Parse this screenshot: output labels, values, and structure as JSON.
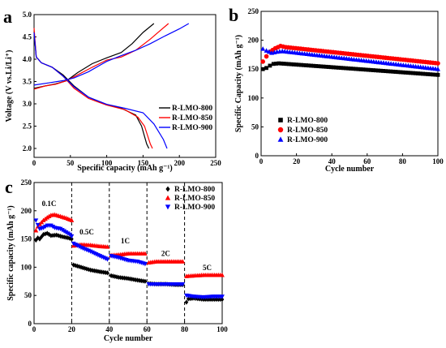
{
  "chart_data": [
    {
      "panel": "a",
      "type": "line",
      "xlabel": "Specific capacity (mAh g⁻¹)",
      "ylabel": "Voltage (V vs.Li/Li⁺)",
      "xlim": [
        0,
        250
      ],
      "ylim": [
        1.8,
        5.0
      ],
      "xticks": [
        0,
        50,
        100,
        150,
        200,
        250
      ],
      "yticks": [
        2.0,
        2.5,
        3.0,
        3.5,
        4.0,
        4.5,
        5.0
      ],
      "xtick_labels": [
        "0",
        "50",
        "100",
        "150",
        "200",
        "250"
      ],
      "ytick_labels": [
        "2.0",
        "2.5",
        "3.0",
        "3.5",
        "4.0",
        "4.5",
        "5.0"
      ],
      "legend_position": "right",
      "series": [
        {
          "name": "R-LMO-800",
          "color": "#000000",
          "charge": [
            [
              0,
              3.35
            ],
            [
              15,
              3.4
            ],
            [
              30,
              3.45
            ],
            [
              45,
              3.52
            ],
            [
              60,
              3.7
            ],
            [
              80,
              3.9
            ],
            [
              100,
              4.03
            ],
            [
              120,
              4.15
            ],
            [
              135,
              4.35
            ],
            [
              150,
              4.6
            ],
            [
              165,
              4.8
            ]
          ],
          "discharge": [
            [
              0,
              4.6
            ],
            [
              3,
              4.05
            ],
            [
              10,
              3.92
            ],
            [
              25,
              3.82
            ],
            [
              40,
              3.65
            ],
            [
              55,
              3.4
            ],
            [
              75,
              3.15
            ],
            [
              100,
              2.98
            ],
            [
              120,
              2.9
            ],
            [
              140,
              2.75
            ],
            [
              148,
              2.5
            ],
            [
              155,
              2.1
            ],
            [
              158,
              2.0
            ]
          ]
        },
        {
          "name": "R-LMO-850",
          "color": "#FF0000",
          "charge": [
            [
              0,
              3.33
            ],
            [
              15,
              3.4
            ],
            [
              30,
              3.44
            ],
            [
              45,
              3.52
            ],
            [
              60,
              3.65
            ],
            [
              80,
              3.82
            ],
            [
              100,
              3.98
            ],
            [
              120,
              4.05
            ],
            [
              140,
              4.2
            ],
            [
              160,
              4.45
            ],
            [
              172,
              4.62
            ],
            [
              185,
              4.8
            ]
          ],
          "discharge": [
            [
              0,
              4.7
            ],
            [
              3,
              4.05
            ],
            [
              10,
              3.92
            ],
            [
              25,
              3.82
            ],
            [
              40,
              3.62
            ],
            [
              55,
              3.35
            ],
            [
              75,
              3.12
            ],
            [
              100,
              2.97
            ],
            [
              125,
              2.87
            ],
            [
              143,
              2.7
            ],
            [
              152,
              2.5
            ],
            [
              160,
              2.1
            ],
            [
              163,
              2.0
            ]
          ]
        },
        {
          "name": "R-LMO-900",
          "color": "#0000FF",
          "charge": [
            [
              0,
              3.42
            ],
            [
              20,
              3.47
            ],
            [
              40,
              3.52
            ],
            [
              55,
              3.58
            ],
            [
              75,
              3.72
            ],
            [
              100,
              3.95
            ],
            [
              120,
              4.08
            ],
            [
              140,
              4.2
            ],
            [
              160,
              4.35
            ],
            [
              180,
              4.52
            ],
            [
              200,
              4.68
            ],
            [
              213,
              4.8
            ]
          ],
          "discharge": [
            [
              0,
              4.6
            ],
            [
              3,
              4.05
            ],
            [
              10,
              3.92
            ],
            [
              25,
              3.82
            ],
            [
              40,
              3.62
            ],
            [
              55,
              3.38
            ],
            [
              75,
              3.15
            ],
            [
              100,
              2.99
            ],
            [
              125,
              2.9
            ],
            [
              150,
              2.8
            ],
            [
              165,
              2.55
            ],
            [
              178,
              2.2
            ],
            [
              183,
              2.0
            ]
          ]
        }
      ]
    },
    {
      "panel": "b",
      "type": "scatter",
      "xlabel": "Cycle number",
      "ylabel": "Specific Capacity (mAh g⁻¹)",
      "xlim": [
        0,
        100
      ],
      "ylim": [
        0,
        250
      ],
      "xticks": [
        0,
        20,
        40,
        60,
        80,
        100
      ],
      "yticks": [
        0,
        50,
        100,
        150,
        200,
        250
      ],
      "xtick_labels": [
        "0",
        "20",
        "40",
        "60",
        "80",
        "100"
      ],
      "ytick_labels": [
        "0",
        "50",
        "100",
        "150",
        "200",
        "250"
      ],
      "legend_position": "bottom-left",
      "series": [
        {
          "name": "R-LMO-800",
          "color": "#000000",
          "marker": "square",
          "points": [
            [
              1,
              150
            ],
            [
              3,
              152
            ],
            [
              5,
              156
            ],
            [
              7,
              159
            ],
            [
              10,
              160
            ],
            [
              100,
              140
            ]
          ]
        },
        {
          "name": "R-LMO-850",
          "color": "#FF0000",
          "marker": "circle",
          "points": [
            [
              1,
              163
            ],
            [
              3,
              172
            ],
            [
              5,
              180
            ],
            [
              8,
              186
            ],
            [
              11,
              190
            ],
            [
              14,
              188
            ],
            [
              100,
              160
            ]
          ]
        },
        {
          "name": "R-LMO-900",
          "color": "#0000FF",
          "marker": "triangle",
          "points": [
            [
              1,
              185
            ],
            [
              3,
              182
            ],
            [
              6,
              178
            ],
            [
              9,
              180
            ],
            [
              12,
              181
            ],
            [
              100,
              150
            ]
          ]
        }
      ]
    },
    {
      "panel": "c",
      "type": "scatter",
      "xlabel": "Cycle number",
      "ylabel": "Specific capacity (mAh g⁻¹)",
      "xlim": [
        0,
        100
      ],
      "ylim": [
        0,
        250
      ],
      "xticks": [
        0,
        20,
        40,
        60,
        80,
        100
      ],
      "yticks": [
        0,
        50,
        100,
        150,
        200,
        250
      ],
      "xtick_labels": [
        "0",
        "20",
        "40",
        "60",
        "80",
        "100"
      ],
      "ytick_labels": [
        "0",
        "50",
        "100",
        "150",
        "200",
        "250"
      ],
      "legend_position": "top-right",
      "rate_labels": [
        {
          "text": "0.1C",
          "x": 8,
          "y": 208
        },
        {
          "text": "0.5C",
          "x": 28,
          "y": 158
        },
        {
          "text": "1C",
          "x": 48.5,
          "y": 142
        },
        {
          "text": "2C",
          "x": 70,
          "y": 120
        },
        {
          "text": "5C",
          "x": 92,
          "y": 95
        }
      ],
      "dividers": [
        20,
        40,
        60,
        80
      ],
      "series": [
        {
          "name": "R-LMO-800",
          "color": "#000000",
          "marker": "diamond",
          "points": [
            [
              1,
              148
            ],
            [
              2,
              152
            ],
            [
              3,
              150
            ],
            [
              5,
              158
            ],
            [
              7,
              160
            ],
            [
              9,
              156
            ],
            [
              12,
              157
            ],
            [
              15,
              154
            ],
            [
              18,
              152
            ],
            [
              20,
              150
            ],
            [
              21,
              104
            ],
            [
              25,
              100
            ],
            [
              30,
              95
            ],
            [
              35,
              92
            ],
            [
              39,
              90
            ],
            [
              41,
              85
            ],
            [
              45,
              82
            ],
            [
              50,
              80
            ],
            [
              55,
              77
            ],
            [
              59,
              75
            ],
            [
              61,
              71
            ],
            [
              65,
              70
            ],
            [
              70,
              70
            ],
            [
              75,
              69
            ],
            [
              79,
              69
            ],
            [
              81,
              38
            ],
            [
              82,
              44
            ],
            [
              85,
              45
            ],
            [
              90,
              43
            ],
            [
              95,
              43
            ],
            [
              100,
              43
            ]
          ]
        },
        {
          "name": "R-LMO-850",
          "color": "#FF0000",
          "marker": "triangle",
          "points": [
            [
              1,
              165
            ],
            [
              2,
              172
            ],
            [
              3,
              176
            ],
            [
              5,
              183
            ],
            [
              7,
              188
            ],
            [
              9,
              192
            ],
            [
              11,
              193
            ],
            [
              14,
              190
            ],
            [
              17,
              187
            ],
            [
              20,
              183
            ],
            [
              21,
              138
            ],
            [
              25,
              140
            ],
            [
              30,
              139
            ],
            [
              35,
              137
            ],
            [
              39,
              136
            ],
            [
              41,
              121
            ],
            [
              45,
              122
            ],
            [
              50,
              124
            ],
            [
              55,
              124
            ],
            [
              59,
              124
            ],
            [
              61,
              108
            ],
            [
              65,
              110
            ],
            [
              70,
              110
            ],
            [
              75,
              110
            ],
            [
              79,
              110
            ],
            [
              81,
              84
            ],
            [
              85,
              85
            ],
            [
              90,
              86
            ],
            [
              95,
              86
            ],
            [
              100,
              86
            ]
          ]
        },
        {
          "name": "R-LMO-900",
          "color": "#0000FF",
          "marker": "triangle-down",
          "points": [
            [
              1,
              183
            ],
            [
              2,
              175
            ],
            [
              3,
              168
            ],
            [
              5,
              170
            ],
            [
              7,
              174
            ],
            [
              9,
              174
            ],
            [
              11,
              170
            ],
            [
              14,
              168
            ],
            [
              17,
              162
            ],
            [
              19,
              158
            ],
            [
              20,
              155
            ],
            [
              21,
              142
            ],
            [
              25,
              135
            ],
            [
              30,
              128
            ],
            [
              35,
              120
            ],
            [
              39,
              114
            ],
            [
              41,
              120
            ],
            [
              45,
              117
            ],
            [
              50,
              112
            ],
            [
              55,
              110
            ],
            [
              59,
              106
            ],
            [
              61,
              70
            ],
            [
              65,
              70
            ],
            [
              70,
              70
            ],
            [
              75,
              70
            ],
            [
              79,
              70
            ],
            [
              81,
              50
            ],
            [
              85,
              48
            ],
            [
              90,
              47
            ],
            [
              95,
              48
            ],
            [
              100,
              48
            ]
          ]
        }
      ]
    }
  ]
}
